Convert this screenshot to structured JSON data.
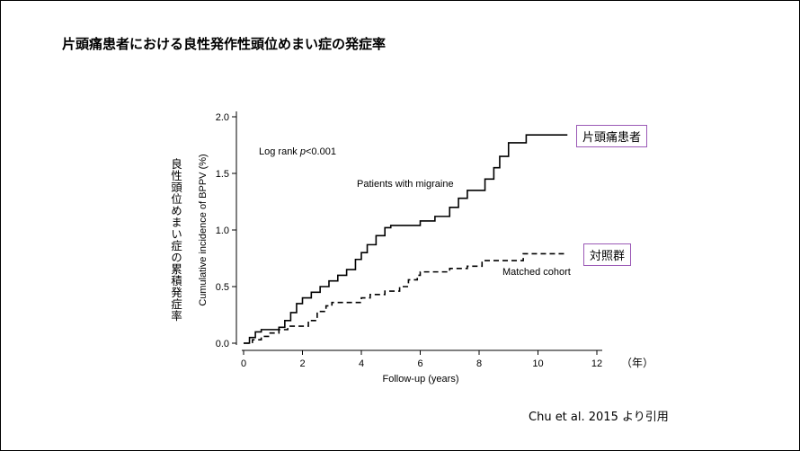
{
  "chart_data": {
    "type": "step",
    "title": "片頭痛患者における良性発作性頭位めまい症の発症率",
    "x_label": "Follow-up (years)",
    "x_unit_label": "（年）",
    "y_label": "Cumulative incidence of BPPV (%)",
    "y_label_ja": "良性頭位めまい症の累積発症率",
    "annotation_prefix": "Log rank ",
    "annotation_italic": "p",
    "annotation_suffix": "<0.001",
    "citation": "Chu et al. 2015 より引用",
    "xlim": [
      0,
      12
    ],
    "xticks": [
      0,
      2,
      4,
      6,
      8,
      10,
      12
    ],
    "ylim": [
      0,
      2
    ],
    "yticks": [
      {
        "value": 0,
        "label": "0.0"
      },
      {
        "value": 0.5,
        "label": "0.5"
      },
      {
        "value": 1,
        "label": "1.0"
      },
      {
        "value": 1.5,
        "label": "1.5"
      },
      {
        "value": 2,
        "label": "2.0"
      }
    ],
    "series": [
      {
        "name": "Patients with migraine",
        "tag": "片頭痛患者",
        "color": "#000000",
        "dashed": false,
        "x": [
          0,
          0.2,
          0.4,
          0.6,
          1.2,
          1.4,
          1.6,
          1.8,
          2.0,
          2.3,
          2.6,
          2.9,
          3.2,
          3.5,
          3.8,
          4.0,
          4.2,
          4.5,
          4.8,
          5.0,
          6.0,
          6.5,
          7.0,
          7.3,
          7.6,
          8.2,
          8.5,
          8.7,
          9.0,
          9.6,
          11.0
        ],
        "values": [
          0,
          0.05,
          0.1,
          0.12,
          0.14,
          0.2,
          0.27,
          0.35,
          0.4,
          0.45,
          0.5,
          0.55,
          0.6,
          0.65,
          0.74,
          0.8,
          0.87,
          0.95,
          1.02,
          1.04,
          1.08,
          1.12,
          1.2,
          1.28,
          1.35,
          1.45,
          1.55,
          1.65,
          1.77,
          1.84,
          1.84
        ]
      },
      {
        "name": "Matched cohort",
        "tag": "対照群",
        "color": "#000000",
        "dashed": true,
        "x": [
          0,
          0.3,
          0.6,
          0.9,
          1.2,
          1.5,
          2.2,
          2.5,
          2.8,
          3.0,
          4.0,
          4.3,
          4.8,
          5.3,
          5.6,
          5.9,
          6.0,
          7.0,
          7.6,
          8.1,
          9.5,
          11.0
        ],
        "values": [
          0,
          0.03,
          0.06,
          0.09,
          0.12,
          0.15,
          0.2,
          0.28,
          0.33,
          0.36,
          0.4,
          0.43,
          0.46,
          0.5,
          0.56,
          0.6,
          0.63,
          0.66,
          0.68,
          0.73,
          0.79,
          0.79
        ]
      }
    ]
  }
}
